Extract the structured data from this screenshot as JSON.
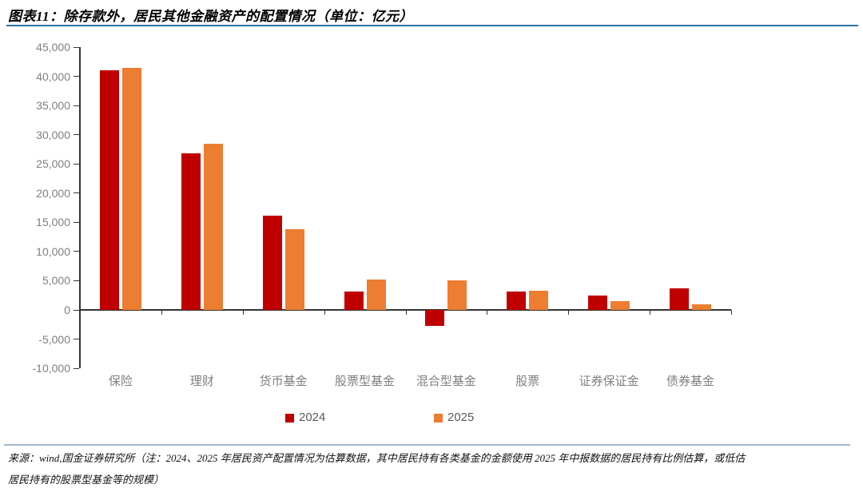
{
  "page": {
    "title": "图表11：除存款外，居民其他金融资产的配置情况（单位：亿元）",
    "source_note_line1": "来源：wind,国金证券研究所（注：2024、2025 年居民资产配置情况为估算数据，其中居民持有各类基金的金额使用 2025 年中报数据的居民持有比例估算，或低估",
    "source_note_line2": "居民持有的股票型基金等的规模）"
  },
  "colors": {
    "series_2024": "#C00000",
    "series_2025": "#ED7D31",
    "title_rule": "#2E74A8",
    "footer_rule": "#A3B8CC",
    "axis_line": "#333333",
    "axis_text": "#7F7F7F",
    "legend_text": "#595959"
  },
  "chart_data": {
    "type": "bar",
    "title": "除存款外，居民其他金融资产的配置情况",
    "unit": "亿元",
    "categories": [
      "保险",
      "理财",
      "货币基金",
      "股票型基金",
      "混合型基金",
      "股票",
      "证券保证金",
      "债券基金"
    ],
    "series": [
      {
        "name": "2024",
        "color": "#C00000",
        "values": [
          41000,
          26800,
          16200,
          3100,
          -2800,
          3100,
          2500,
          3700
        ]
      },
      {
        "name": "2025",
        "color": "#ED7D31",
        "values": [
          41500,
          28400,
          13800,
          5200,
          5000,
          3300,
          1500,
          1000
        ]
      }
    ],
    "ylim": [
      -10000,
      45000
    ],
    "ytick_step": 5000,
    "ytick_labels": [
      "45,000",
      "40,000",
      "35,000",
      "30,000",
      "25,000",
      "20,000",
      "15,000",
      "10,000",
      "5,000",
      "0",
      "-5,000",
      "-10,000"
    ],
    "grid": false,
    "legend_position": "bottom"
  },
  "legend": {
    "items": [
      {
        "label": "2024",
        "color": "#C00000"
      },
      {
        "label": "2025",
        "color": "#ED7D31"
      }
    ]
  }
}
